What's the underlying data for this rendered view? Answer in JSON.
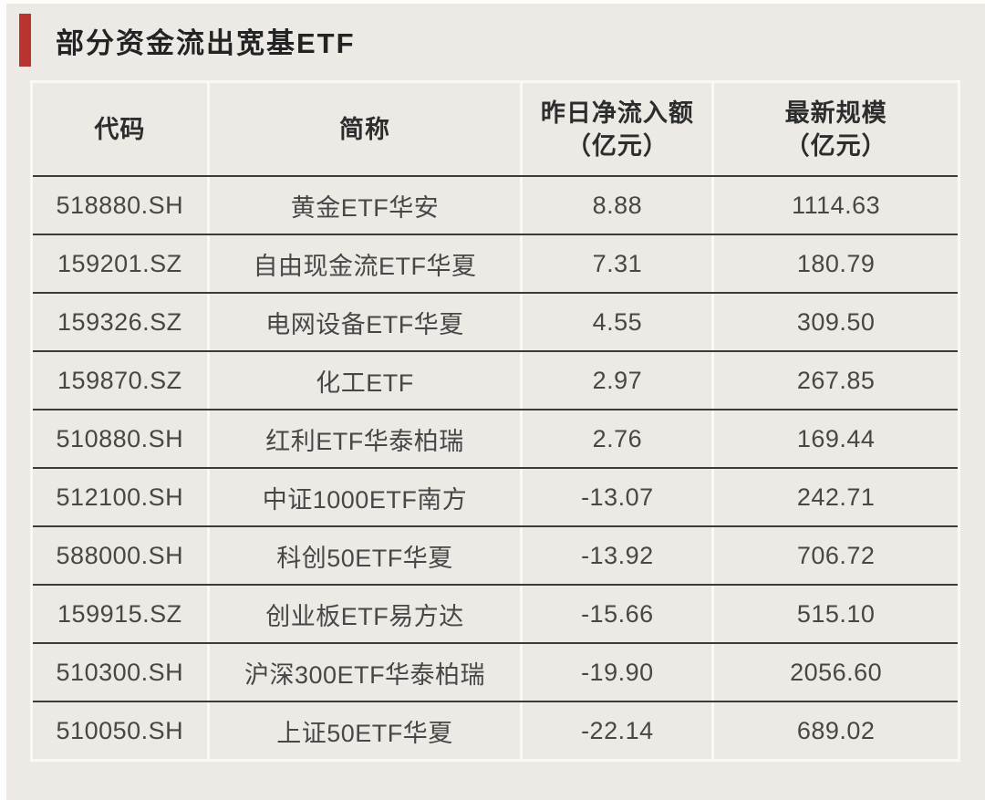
{
  "title": {
    "text": "部分资金流出宽基ETF"
  },
  "colors": {
    "accent_red": "#b8342e",
    "background": "#edeae5",
    "row_divider_dark": "#3b3b3b",
    "column_divider_light": "#fbf9f5",
    "header_text": "#2d2d2d",
    "cell_text": "#474747"
  },
  "table": {
    "headers": [
      {
        "line1": "代码",
        "line2": ""
      },
      {
        "line1": "简称",
        "line2": ""
      },
      {
        "line1": "昨日净流入额",
        "line2": "（亿元）"
      },
      {
        "line1": "最新规模",
        "line2": "（亿元）"
      }
    ],
    "rows": [
      {
        "code": "518880.SH",
        "name": "黄金ETF华安",
        "net_inflow": "8.88",
        "scale": "1114.63"
      },
      {
        "code": "159201.SZ",
        "name": "自由现金流ETF华夏",
        "net_inflow": "7.31",
        "scale": "180.79"
      },
      {
        "code": "159326.SZ",
        "name": "电网设备ETF华夏",
        "net_inflow": "4.55",
        "scale": "309.50"
      },
      {
        "code": "159870.SZ",
        "name": "化工ETF",
        "net_inflow": "2.97",
        "scale": "267.85"
      },
      {
        "code": "510880.SH",
        "name": "红利ETF华泰柏瑞",
        "net_inflow": "2.76",
        "scale": "169.44"
      },
      {
        "code": "512100.SH",
        "name": "中证1000ETF南方",
        "net_inflow": "-13.07",
        "scale": "242.71"
      },
      {
        "code": "588000.SH",
        "name": "科创50ETF华夏",
        "net_inflow": "-13.92",
        "scale": "706.72"
      },
      {
        "code": "159915.SZ",
        "name": "创业板ETF易方达",
        "net_inflow": "-15.66",
        "scale": "515.10"
      },
      {
        "code": "510300.SH",
        "name": "沪深300ETF华泰柏瑞",
        "net_inflow": "-19.90",
        "scale": "2056.60"
      },
      {
        "code": "510050.SH",
        "name": "上证50ETF华夏",
        "net_inflow": "-22.14",
        "scale": "689.02"
      }
    ]
  },
  "chart_data": {
    "type": "table",
    "title": "部分资金流出宽基ETF",
    "columns": [
      "代码",
      "简称",
      "昨日净流入额（亿元）",
      "最新规模（亿元）"
    ],
    "rows": [
      [
        "518880.SH",
        "黄金ETF华安",
        8.88,
        1114.63
      ],
      [
        "159201.SZ",
        "自由现金流ETF华夏",
        7.31,
        180.79
      ],
      [
        "159326.SZ",
        "电网设备ETF华夏",
        4.55,
        309.5
      ],
      [
        "159870.SZ",
        "化工ETF",
        2.97,
        267.85
      ],
      [
        "510880.SH",
        "红利ETF华泰柏瑞",
        2.76,
        169.44
      ],
      [
        "512100.SH",
        "中证1000ETF南方",
        -13.07,
        242.71
      ],
      [
        "588000.SH",
        "科创50ETF华夏",
        -13.92,
        706.72
      ],
      [
        "159915.SZ",
        "创业板ETF易方达",
        -15.66,
        515.1
      ],
      [
        "510300.SH",
        "沪深300ETF华泰柏瑞",
        -19.9,
        2056.6
      ],
      [
        "510050.SH",
        "上证50ETF华夏",
        -22.14,
        689.02
      ]
    ]
  }
}
